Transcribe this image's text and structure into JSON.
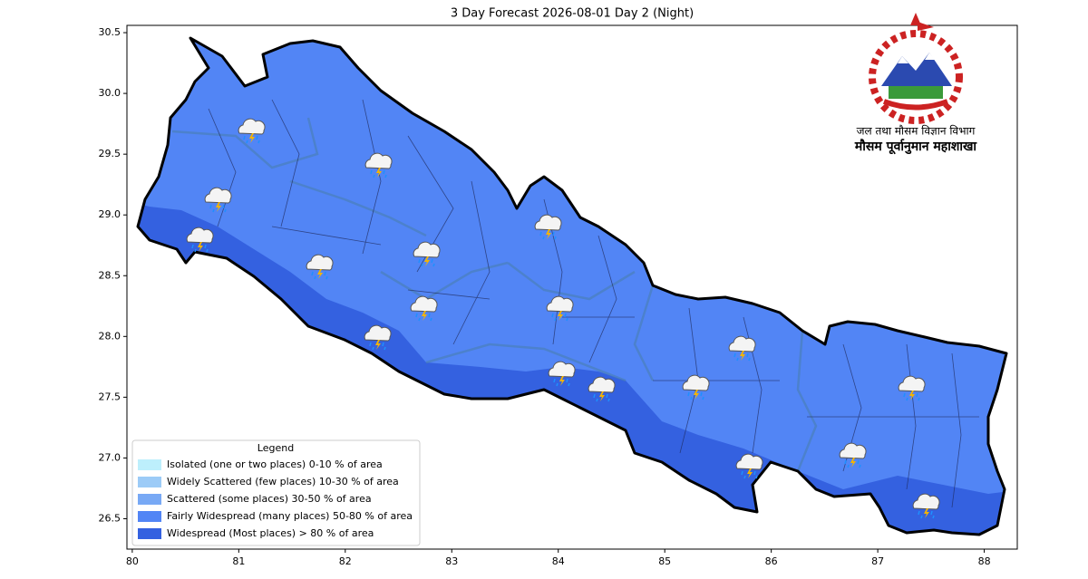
{
  "chart_data": {
    "type": "map",
    "title": "3 Day Forecast 2026-08-01 Day 2 (Night)",
    "xlim": [
      79.95,
      88.31
    ],
    "ylim": [
      26.25,
      30.56
    ],
    "xticks": [
      80,
      81,
      82,
      83,
      84,
      85,
      86,
      87,
      88
    ],
    "yticks": [
      26.5,
      {
        "value": 27,
        "label": "27.0"
      },
      27.5,
      {
        "value": 28,
        "label": "28.0"
      },
      28.5,
      {
        "value": 29,
        "label": "29.0"
      },
      29.5,
      {
        "value": 30,
        "label": "30.0"
      },
      30.5
    ],
    "legend": {
      "title": "Legend",
      "entries": [
        {
          "name": "Isolated (one or two places)  0-10 % of area",
          "color": "#bdeffc"
        },
        {
          "name": "Widely Scattered (few places)  10-30 % of area",
          "color": "#9ccbf7"
        },
        {
          "name": "Scattered (some places)  30-50 % of area",
          "color": "#78a9f5"
        },
        {
          "name": "Fairly Widespread (many places)  50-80 % of area",
          "color": "#5285f5"
        },
        {
          "name": "Widespread (Most places) > 80 % of area",
          "color": "#3461e0"
        }
      ]
    },
    "logo": {
      "line1": "जल तथा मौसम विज्ञान विभाग",
      "line2": "मौसम पूर्वानुमान महाशाखा"
    }
  }
}
